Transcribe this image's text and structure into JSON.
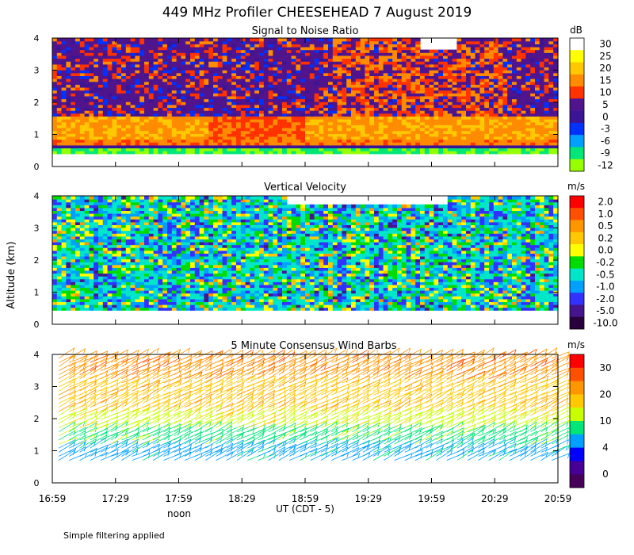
{
  "title": "449 MHz Profiler CHEESEHEAD  7 August 2019",
  "ylabel": "Altitude (km)",
  "xlabel": "UT  (CDT - 5)",
  "noon_label": "noon",
  "footnote": "Simple filtering applied",
  "x_ticks": [
    "16:59",
    "17:29",
    "17:59",
    "18:29",
    "18:59",
    "19:29",
    "19:59",
    "20:29",
    "20:59"
  ],
  "y_ticks": [
    "0",
    "1",
    "2",
    "3",
    "4"
  ],
  "chart_data": [
    {
      "type": "heatmap",
      "title": "Signal to Noise Ratio",
      "unit": "dB",
      "x_range": [
        "16:59",
        "20:59"
      ],
      "ylim": [
        0,
        4
      ],
      "colorbar_labels": [
        "30",
        "25",
        "20",
        "15",
        "10",
        "5",
        "0",
        "-3",
        "-6",
        "-9",
        "-12"
      ],
      "colors": [
        "#ffffff",
        "#ffff00",
        "#ffc800",
        "#ff8c00",
        "#ff3200",
        "#50148c",
        "#3c1496",
        "#0032ff",
        "#00a0ff",
        "#00e678",
        "#96ff00"
      ]
    },
    {
      "type": "heatmap",
      "title": "Vertical Velocity",
      "unit": "m/s",
      "x_range": [
        "16:59",
        "20:59"
      ],
      "ylim": [
        0,
        4
      ],
      "colorbar_labels": [
        "2.0",
        "1.0",
        "0.5",
        "0.2",
        "0.0",
        "-0.2",
        "-0.5",
        "-1.0",
        "-2.0",
        "-5.0",
        "-10.0"
      ],
      "colors": [
        "#ff0000",
        "#ff5000",
        "#ff9600",
        "#ffc800",
        "#ffff00",
        "#00dc00",
        "#00e6c8",
        "#00a0ff",
        "#3232ff",
        "#46148c",
        "#28003c"
      ]
    },
    {
      "type": "scatter",
      "title": "5 Minute Consensus Wind Barbs",
      "unit": "m/s",
      "x_range": [
        "16:59",
        "20:59"
      ],
      "ylim": [
        0,
        4
      ],
      "colorbar_labels": [
        "30",
        "20",
        "10",
        "4",
        "0"
      ],
      "colors": [
        "#ff0000",
        "#ff5000",
        "#ff9600",
        "#ffc800",
        "#c8ff00",
        "#00e678",
        "#00a0ff",
        "#0000ff",
        "#460096",
        "#46005a"
      ]
    }
  ]
}
